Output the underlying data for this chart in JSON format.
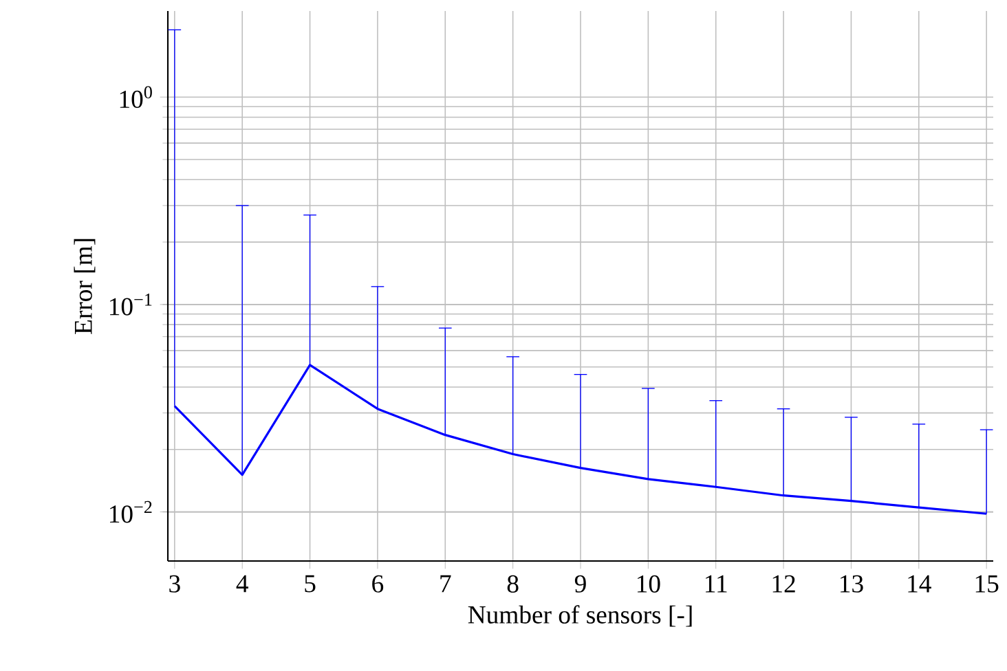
{
  "chart_data": {
    "type": "line",
    "xlabel": "Number of sensors [-]",
    "ylabel": "Error [m]",
    "x": [
      3,
      4,
      5,
      6,
      7,
      8,
      9,
      10,
      11,
      12,
      13,
      14,
      15
    ],
    "series": [
      {
        "color": "#0000ff",
        "values": [
          0.0324,
          0.0151,
          0.0511,
          0.0314,
          0.0235,
          0.019,
          0.0163,
          0.0144,
          0.0132,
          0.012,
          0.0113,
          0.0105,
          0.0098
        ],
        "errors": [
          [
            0.0324,
            2.11
          ],
          [
            0.0151,
            0.3
          ],
          [
            0.0511,
            0.27
          ],
          [
            0.0314,
            0.122
          ],
          [
            0.0235,
            0.077
          ],
          [
            0.019,
            0.056
          ],
          [
            0.0163,
            0.046
          ],
          [
            0.0144,
            0.0394
          ],
          [
            0.0132,
            0.0344
          ],
          [
            0.012,
            0.0314
          ],
          [
            0.0113,
            0.0286
          ],
          [
            0.0105,
            0.0265
          ],
          [
            0.0098,
            0.0249
          ]
        ]
      }
    ],
    "log": "y",
    "grid": true,
    "xlim": [
      2.9,
      15.1
    ],
    "xticks": [
      3,
      4,
      5,
      6,
      7,
      8,
      9,
      10,
      11,
      12,
      13,
      14,
      15
    ],
    "ylim": [
      0.0058,
      2.6
    ],
    "yticks": [
      {
        "value": 0.01,
        "label": "10$^{−2}$"
      },
      {
        "value": 0.1,
        "label": "10$^{−1}$"
      },
      {
        "value": 1,
        "label": "10$^{0}$"
      }
    ]
  }
}
